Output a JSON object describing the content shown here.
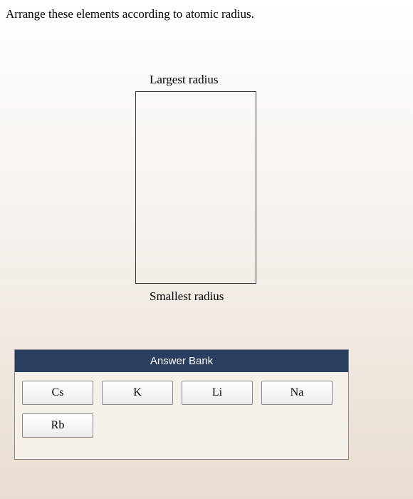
{
  "question": {
    "prompt": "Arrange these elements according to atomic radius."
  },
  "dropzone": {
    "top_label": "Largest radius",
    "bottom_label": "Smallest radius"
  },
  "answer_bank": {
    "title": "Answer Bank",
    "header_bg": "#2a3f5f",
    "header_text_color": "#ffffff",
    "tile_border": "#888888",
    "elements": {
      "row1": [
        "Cs",
        "K",
        "Li",
        "Na"
      ],
      "row2": [
        "Rb"
      ]
    }
  },
  "colors": {
    "page_bg_top": "#ffffff",
    "page_bg_bottom": "#e8ddd0",
    "text": "#000000"
  }
}
